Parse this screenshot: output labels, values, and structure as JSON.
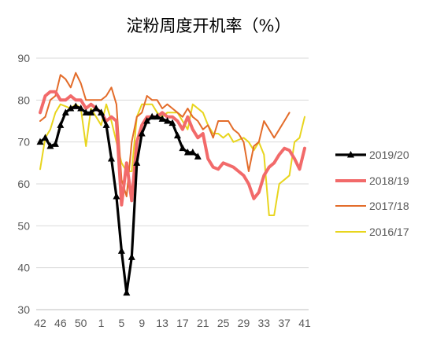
{
  "chart_data": {
    "type": "line",
    "title": "淀粉周度开机率（%）",
    "xlabel": "",
    "ylabel": "",
    "ylim": [
      30,
      90
    ],
    "yticks": [
      30,
      40,
      50,
      60,
      70,
      80,
      90
    ],
    "x_tick_labels": [
      "42",
      "46",
      "50",
      "1",
      "5",
      "9",
      "13",
      "17",
      "21",
      "25",
      "29",
      "33",
      "37",
      "41"
    ],
    "grid": "horizontal",
    "legend_position": "right",
    "series": [
      {
        "name": "2016/17",
        "color": "#e8d51e",
        "marker": "none",
        "points": [
          [
            0,
            63.5
          ],
          [
            1,
            71
          ],
          [
            2,
            73
          ],
          [
            3,
            77
          ],
          [
            4,
            79
          ],
          [
            5,
            78.5
          ],
          [
            6,
            78
          ],
          [
            7,
            79
          ],
          [
            8,
            78
          ],
          [
            9,
            69
          ],
          [
            10,
            78
          ],
          [
            11,
            76
          ],
          [
            12,
            74
          ],
          [
            13,
            79
          ],
          [
            14,
            75
          ],
          [
            15,
            70
          ],
          [
            16,
            65
          ],
          [
            17,
            63
          ],
          [
            18,
            63
          ],
          [
            19,
            76
          ],
          [
            20,
            79
          ],
          [
            21,
            79
          ],
          [
            22,
            79
          ],
          [
            23,
            77
          ],
          [
            24,
            76
          ],
          [
            25,
            77
          ],
          [
            26,
            77
          ],
          [
            27,
            77
          ],
          [
            28,
            75
          ],
          [
            29,
            73
          ],
          [
            30,
            79
          ],
          [
            31,
            78
          ],
          [
            32,
            77
          ],
          [
            33,
            74
          ],
          [
            34,
            72
          ],
          [
            35,
            72
          ],
          [
            36,
            71
          ],
          [
            37,
            72
          ],
          [
            38,
            70
          ],
          [
            39,
            70.5
          ],
          [
            40,
            71
          ],
          [
            41,
            70
          ],
          [
            42,
            68
          ],
          [
            43,
            70
          ],
          [
            44,
            67
          ],
          [
            45,
            52.5
          ],
          [
            46,
            52.5
          ],
          [
            47,
            60
          ],
          [
            48,
            61
          ],
          [
            49,
            62
          ],
          [
            50,
            70
          ],
          [
            51,
            71
          ],
          [
            52,
            76
          ]
        ]
      },
      {
        "name": "2017/18",
        "color": "#e36c2a",
        "marker": "none",
        "points": [
          [
            0,
            75
          ],
          [
            1,
            76
          ],
          [
            2,
            80
          ],
          [
            3,
            81
          ],
          [
            4,
            86
          ],
          [
            5,
            85
          ],
          [
            6,
            83
          ],
          [
            7,
            86.5
          ],
          [
            8,
            84
          ],
          [
            9,
            80
          ],
          [
            10,
            80
          ],
          [
            11,
            80
          ],
          [
            12,
            80
          ],
          [
            13,
            81
          ],
          [
            14,
            83
          ],
          [
            15,
            79
          ],
          [
            16,
            61
          ],
          [
            17,
            57
          ],
          [
            18,
            70
          ],
          [
            19,
            76
          ],
          [
            20,
            77
          ],
          [
            21,
            81
          ],
          [
            22,
            80
          ],
          [
            23,
            80
          ],
          [
            24,
            78
          ],
          [
            25,
            79
          ],
          [
            26,
            78
          ],
          [
            27,
            77
          ],
          [
            28,
            76
          ],
          [
            29,
            78
          ],
          [
            30,
            76
          ],
          [
            31,
            75
          ],
          [
            32,
            73
          ],
          [
            33,
            74
          ],
          [
            34,
            71
          ],
          [
            35,
            75
          ],
          [
            36,
            75
          ],
          [
            37,
            75
          ],
          [
            38,
            73
          ],
          [
            39,
            72
          ],
          [
            40,
            70
          ],
          [
            41,
            63
          ],
          [
            42,
            69
          ],
          [
            43,
            70
          ],
          [
            44,
            75
          ],
          [
            45,
            73
          ],
          [
            46,
            71
          ],
          [
            47,
            73
          ],
          [
            48,
            75
          ],
          [
            49,
            77
          ]
        ]
      },
      {
        "name": "2018/19",
        "color": "#f26a6a",
        "marker": "none",
        "points": [
          [
            0,
            77
          ],
          [
            1,
            81
          ],
          [
            2,
            82
          ],
          [
            3,
            82
          ],
          [
            4,
            80
          ],
          [
            5,
            80
          ],
          [
            6,
            81
          ],
          [
            7,
            80
          ],
          [
            8,
            80
          ],
          [
            9,
            78
          ],
          [
            10,
            79
          ],
          [
            11,
            78
          ],
          [
            12,
            77
          ],
          [
            13,
            75
          ],
          [
            14,
            76
          ],
          [
            15,
            75
          ],
          [
            16,
            55
          ],
          [
            17,
            65
          ],
          [
            18,
            56
          ],
          [
            19,
            70
          ],
          [
            20,
            74
          ],
          [
            21,
            76
          ],
          [
            22,
            76
          ],
          [
            23,
            76
          ],
          [
            24,
            77
          ],
          [
            25,
            76
          ],
          [
            26,
            76
          ],
          [
            27,
            75
          ],
          [
            28,
            73
          ],
          [
            29,
            76
          ],
          [
            30,
            73
          ],
          [
            31,
            71
          ],
          [
            32,
            72
          ],
          [
            33,
            66
          ],
          [
            34,
            64
          ],
          [
            35,
            63.5
          ],
          [
            36,
            65
          ],
          [
            37,
            64.5
          ],
          [
            38,
            64
          ],
          [
            39,
            63
          ],
          [
            40,
            62
          ],
          [
            41,
            60
          ],
          [
            42,
            56.5
          ],
          [
            43,
            58
          ],
          [
            44,
            62
          ],
          [
            45,
            64
          ],
          [
            46,
            65
          ],
          [
            47,
            67
          ],
          [
            48,
            68.5
          ],
          [
            49,
            68
          ],
          [
            50,
            66
          ],
          [
            51,
            63.5
          ],
          [
            52,
            68.5
          ]
        ]
      },
      {
        "name": "2019/20",
        "color": "#000000",
        "marker": "triangle",
        "points": [
          [
            0,
            70
          ],
          [
            1,
            71
          ],
          [
            2,
            69
          ],
          [
            3,
            69.5
          ],
          [
            4,
            74
          ],
          [
            5,
            77
          ],
          [
            6,
            78
          ],
          [
            7,
            78.5
          ],
          [
            8,
            78
          ],
          [
            9,
            77
          ],
          [
            10,
            77
          ],
          [
            11,
            78
          ],
          [
            12,
            77
          ],
          [
            13,
            74
          ],
          [
            14,
            66
          ],
          [
            15,
            57
          ],
          [
            16,
            44
          ],
          [
            17,
            34
          ],
          [
            18,
            42.5
          ],
          [
            19,
            65
          ],
          [
            20,
            72
          ],
          [
            21,
            75
          ],
          [
            22,
            76
          ],
          [
            23,
            76
          ],
          [
            24,
            75.5
          ],
          [
            25,
            75
          ],
          [
            26,
            74.5
          ],
          [
            27,
            71.5
          ],
          [
            28,
            68.5
          ],
          [
            29,
            67.5
          ],
          [
            30,
            67.5
          ],
          [
            31,
            66.5
          ]
        ]
      }
    ],
    "legend_order": [
      "2019/20",
      "2018/19",
      "2017/18",
      "2016/17"
    ]
  }
}
